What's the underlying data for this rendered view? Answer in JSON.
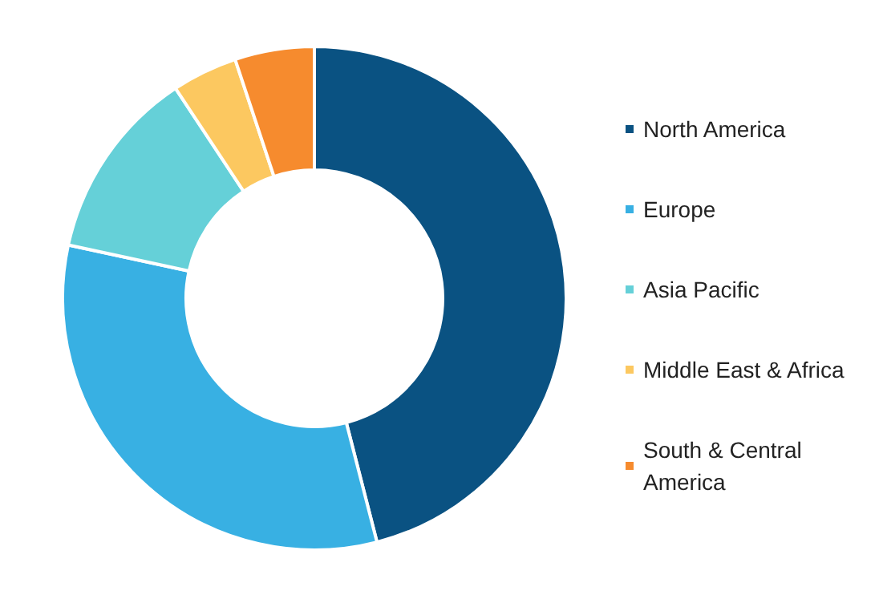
{
  "chart_data": {
    "type": "donut",
    "categories": [
      "North America",
      "Europe",
      "Asia Pacific",
      "Middle East & Africa",
      "South & Central America"
    ],
    "values": [
      46,
      32.4,
      12.3,
      4.2,
      5.1
    ],
    "colors": [
      "#0a5282",
      "#38b0e3",
      "#65d0d8",
      "#fcc860",
      "#f68b2e"
    ],
    "legend": "right"
  }
}
